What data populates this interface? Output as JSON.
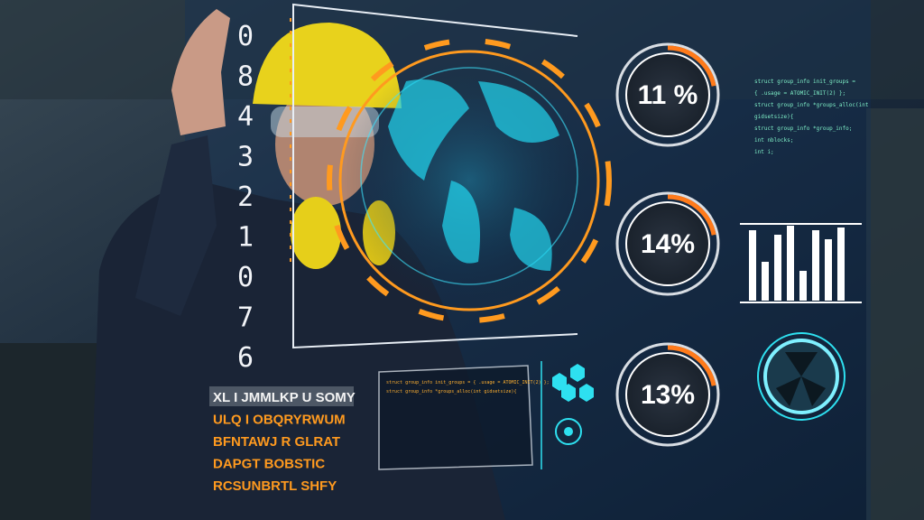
{
  "scale_digits": [
    "0",
    "8",
    "4",
    "3",
    "2",
    "1",
    "0",
    "7",
    "6"
  ],
  "gauges": [
    {
      "label": "11 %"
    },
    {
      "label": "14%"
    },
    {
      "label": "13%"
    }
  ],
  "code_panel": {
    "lines": [
      "struct group_info init_groups =",
      "{ .usage = ATOMIC_INIT(2) };",
      "struct group_info *groups_alloc(int",
      "gidsetsize){",
      "struct group_info *group_info;",
      "int nblocks;",
      "int i;"
    ]
  },
  "small_code_panel": {
    "lines": [
      "struct group_info init_groups = { .usage = ATOMIC_INIT(2) };",
      "struct group_info *groups_alloc(int gidsetsize){"
    ]
  },
  "letter_rows": [
    "XL I JMMLKP U SOMY",
    "ULQ I OBQRYRWUM",
    "BFNTAWJ R GLRAT",
    "DAPGT BOBSTIC",
    "RCSUNBRTL SHFY"
  ]
}
